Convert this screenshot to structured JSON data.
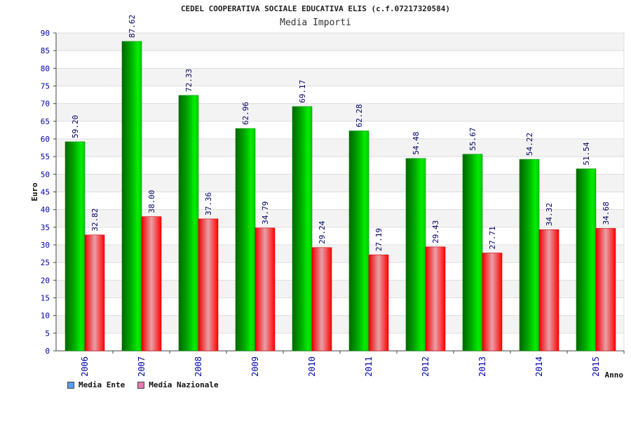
{
  "chart_data": {
    "type": "bar",
    "title": "CEDEL COOPERATIVA SOCIALE EDUCATIVA ELIS (c.f.07217320584)",
    "subtitle": "Media Importi",
    "xlabel": "Anno",
    "ylabel": "Euro",
    "ylim": [
      0,
      90
    ],
    "yticks": [
      0,
      5,
      10,
      15,
      20,
      25,
      30,
      35,
      40,
      45,
      50,
      55,
      60,
      65,
      70,
      75,
      80,
      85,
      90
    ],
    "grid": "horizontal bands",
    "legend_position": "bottom-left",
    "categories": [
      "2006",
      "2007",
      "2008",
      "2009",
      "2010",
      "2011",
      "2012",
      "2013",
      "2014",
      "2015"
    ],
    "series": [
      {
        "name": "Media Ente",
        "color": "#00cc00",
        "legend_color": "#5b9bf0",
        "values": [
          59.2,
          87.62,
          72.33,
          62.96,
          69.17,
          62.28,
          54.48,
          55.67,
          54.22,
          51.54
        ],
        "labels": [
          "59.20",
          "87.62",
          "72.33",
          "62.96",
          "69.17",
          "62.28",
          "54.48",
          "55.67",
          "54.22",
          "51.54"
        ]
      },
      {
        "name": "Media Nazionale",
        "color": "#ff0000",
        "legend_color": "#e87ab0",
        "values": [
          32.82,
          38.0,
          37.36,
          34.79,
          29.24,
          27.19,
          29.43,
          27.71,
          34.32,
          34.68
        ],
        "labels": [
          "32.82",
          "38.00",
          "37.36",
          "34.79",
          "29.24",
          "27.19",
          "29.43",
          "27.71",
          "34.32",
          "34.68"
        ]
      }
    ],
    "colors": {
      "axis_labels": "#0000aa",
      "value_labels": "#000066",
      "band_light": "#f3f3f3",
      "gridline": "#dddddd"
    }
  }
}
